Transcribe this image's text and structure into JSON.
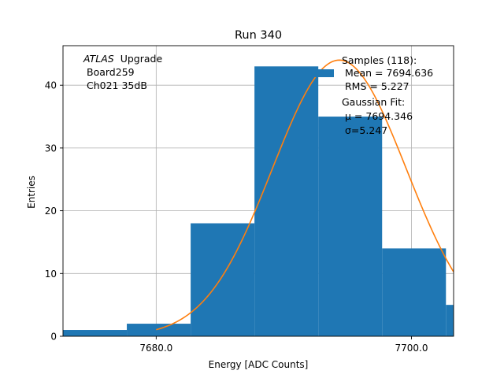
{
  "chart_data": {
    "type": "bar",
    "title": "Run 340",
    "xlabel": "Energy [ADC Counts]",
    "ylabel": "Entries",
    "xlim": [
      7672.7,
      7703.3
    ],
    "ylim": [
      0,
      46.3
    ],
    "grid": true,
    "bar_color": "#1f77b4",
    "fit_color": "#ff7f0e",
    "histogram": {
      "bin_edges": [
        7672.7,
        7677.7,
        7682.7,
        7687.7,
        7692.7,
        7697.7,
        7702.7,
        7707.7
      ],
      "counts": [
        1,
        2,
        18,
        43,
        35,
        14,
        5
      ]
    },
    "x_ticks": [
      {
        "value": 7680.0,
        "label": "7680.0"
      },
      {
        "value": 7700.0,
        "label": "7700.0"
      }
    ],
    "y_ticks": [
      {
        "value": 0,
        "label": "0"
      },
      {
        "value": 10,
        "label": "10"
      },
      {
        "value": 20,
        "label": "20"
      },
      {
        "value": 30,
        "label": "30"
      },
      {
        "value": 40,
        "label": "40"
      }
    ],
    "fit": {
      "mu": 7694.346,
      "sigma": 5.247,
      "amplitude": 44.0,
      "x_range": [
        7680.0,
        7709.0
      ]
    },
    "annotation_lines": [
      "Upgrade",
      "Board259",
      "Ch021 35dB"
    ],
    "annotation_italic": "ATLAS",
    "legend": {
      "placement": "top-right",
      "lines": [
        "Samples (118):",
        "Mean = 7694.636",
        "RMS = 5.227",
        "Gaussian Fit:",
        "μ = 7694.346",
        "σ=5.247"
      ]
    }
  }
}
